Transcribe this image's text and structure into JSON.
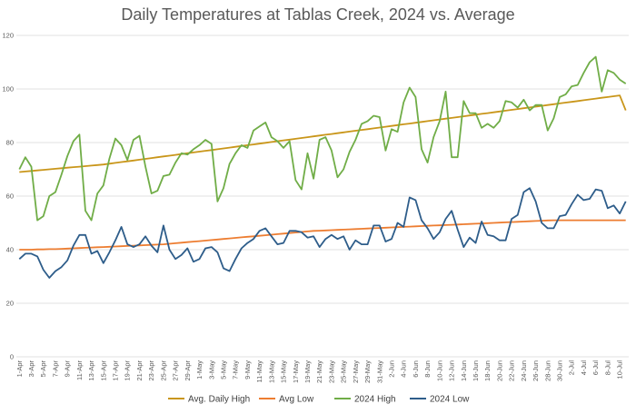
{
  "chart_data": {
    "type": "line",
    "title": "Daily Temperatures at Tablas Creek, 2024 vs. Average",
    "xlabel": "",
    "ylabel": "",
    "ylim": [
      0,
      120
    ],
    "yticks": [
      0,
      20,
      40,
      60,
      80,
      100,
      120
    ],
    "grid": true,
    "legend_position": "bottom",
    "x": [
      "1-Apr",
      "2-Apr",
      "3-Apr",
      "4-Apr",
      "5-Apr",
      "6-Apr",
      "7-Apr",
      "8-Apr",
      "9-Apr",
      "10-Apr",
      "11-Apr",
      "12-Apr",
      "13-Apr",
      "14-Apr",
      "15-Apr",
      "16-Apr",
      "17-Apr",
      "18-Apr",
      "19-Apr",
      "20-Apr",
      "21-Apr",
      "22-Apr",
      "23-Apr",
      "24-Apr",
      "25-Apr",
      "26-Apr",
      "27-Apr",
      "28-Apr",
      "29-Apr",
      "30-Apr",
      "1-May",
      "2-May",
      "3-May",
      "4-May",
      "5-May",
      "6-May",
      "7-May",
      "8-May",
      "9-May",
      "10-May",
      "11-May",
      "12-May",
      "13-May",
      "14-May",
      "15-May",
      "16-May",
      "17-May",
      "18-May",
      "19-May",
      "20-May",
      "21-May",
      "22-May",
      "23-May",
      "24-May",
      "25-May",
      "26-May",
      "27-May",
      "28-May",
      "29-May",
      "30-May",
      "31-May",
      "1-Jun",
      "2-Jun",
      "3-Jun",
      "4-Jun",
      "5-Jun",
      "6-Jun",
      "7-Jun",
      "8-Jun",
      "9-Jun",
      "10-Jun",
      "11-Jun",
      "12-Jun",
      "13-Jun",
      "14-Jun",
      "15-Jun",
      "16-Jun",
      "17-Jun",
      "18-Jun",
      "19-Jun",
      "20-Jun",
      "21-Jun",
      "22-Jun",
      "23-Jun",
      "24-Jun",
      "25-Jun",
      "26-Jun",
      "27-Jun",
      "28-Jun",
      "29-Jun",
      "30-Jun",
      "1-Jul",
      "2-Jul",
      "3-Jul",
      "4-Jul",
      "5-Jul",
      "6-Jul",
      "7-Jul",
      "8-Jul",
      "9-Jul",
      "10-Jul",
      "11-Jul"
    ],
    "series": [
      {
        "name": "Avg. Daily High",
        "color": "#C9961A",
        "values": [
          69.0,
          69.2,
          69.4,
          69.6,
          69.8,
          70.0,
          70.2,
          70.4,
          70.6,
          70.8,
          71.0,
          71.2,
          71.4,
          71.6,
          71.8,
          72.1,
          72.4,
          72.7,
          73.0,
          73.3,
          73.6,
          73.9,
          74.2,
          74.5,
          74.8,
          75.1,
          75.4,
          75.7,
          76.0,
          76.3,
          76.6,
          76.9,
          77.2,
          77.5,
          77.8,
          78.1,
          78.4,
          78.7,
          79.0,
          79.3,
          79.6,
          79.9,
          80.2,
          80.5,
          80.8,
          81.1,
          81.4,
          81.7,
          82.0,
          82.3,
          82.6,
          82.9,
          83.2,
          83.5,
          83.8,
          84.1,
          84.4,
          84.7,
          85.0,
          85.3,
          85.6,
          85.9,
          86.2,
          86.5,
          86.8,
          87.1,
          87.4,
          87.7,
          88.0,
          88.3,
          88.6,
          88.9,
          89.2,
          89.5,
          89.8,
          90.1,
          90.4,
          90.7,
          91.0,
          91.3,
          91.6,
          91.9,
          92.2,
          92.5,
          92.8,
          93.1,
          93.4,
          93.7,
          94.0,
          94.3,
          94.6,
          94.9,
          95.2,
          95.5,
          95.8,
          96.1,
          96.4,
          96.7,
          97.0,
          97.3,
          97.6,
          92.0
        ]
      },
      {
        "name": "Avg Low",
        "color": "#ED7D31",
        "values": [
          40.0,
          40.0,
          40.0,
          40.1,
          40.1,
          40.2,
          40.2,
          40.3,
          40.4,
          40.5,
          40.6,
          40.7,
          40.8,
          40.9,
          41.0,
          41.1,
          41.2,
          41.3,
          41.4,
          41.5,
          41.6,
          41.7,
          41.8,
          41.9,
          42.0,
          42.2,
          42.4,
          42.6,
          42.8,
          43.0,
          43.2,
          43.4,
          43.6,
          43.8,
          44.0,
          44.2,
          44.4,
          44.6,
          44.8,
          45.0,
          45.2,
          45.4,
          45.6,
          45.8,
          46.0,
          46.2,
          46.4,
          46.6,
          46.8,
          47.0,
          47.1,
          47.2,
          47.3,
          47.4,
          47.5,
          47.6,
          47.7,
          47.8,
          47.9,
          48.0,
          48.1,
          48.2,
          48.3,
          48.4,
          48.5,
          48.6,
          48.7,
          48.8,
          48.9,
          49.0,
          49.1,
          49.2,
          49.3,
          49.4,
          49.5,
          49.6,
          49.7,
          49.8,
          49.9,
          50.0,
          50.1,
          50.2,
          50.3,
          50.4,
          50.5,
          50.6,
          50.7,
          50.8,
          50.9,
          51.0,
          51.0,
          51.0,
          51.0,
          51.0,
          51.0,
          51.0,
          51.0,
          51.0,
          51.0,
          51.0,
          51.0,
          51.0
        ]
      },
      {
        "name": "2024 High",
        "color": "#70AD47",
        "values": [
          70,
          74.5,
          71,
          51,
          52.5,
          60,
          61.5,
          68,
          75,
          80.5,
          83,
          54.5,
          51,
          61,
          64,
          74,
          81.5,
          79,
          73.5,
          81,
          82.5,
          71,
          61,
          62,
          67.5,
          68,
          72.5,
          76,
          75.5,
          77.5,
          79,
          81,
          79.5,
          58,
          63,
          72,
          76,
          79,
          78,
          84.5,
          86,
          87.5,
          82,
          80.5,
          78,
          80.5,
          66,
          62.5,
          76,
          66.5,
          81,
          82,
          77,
          67,
          70,
          76.5,
          81,
          87,
          88,
          90,
          89.5,
          77,
          85,
          84,
          95,
          100.5,
          97,
          77.5,
          72.5,
          82,
          88,
          99,
          74.5,
          74.5,
          95.5,
          91,
          91,
          85.5,
          87,
          85.5,
          88,
          95.5,
          95,
          93,
          96,
          92,
          94,
          94,
          84.5,
          89,
          97,
          98,
          101,
          101.5,
          106,
          110,
          112,
          99,
          107,
          106,
          103.5,
          102
        ]
      },
      {
        "name": "2024 Low",
        "color": "#2E5D8A",
        "values": [
          36.5,
          38.5,
          38.5,
          37.5,
          32.5,
          29.5,
          32,
          33.5,
          36,
          41.5,
          45.5,
          45.5,
          38.5,
          39.5,
          35,
          39,
          43.5,
          48.5,
          42,
          41,
          42,
          45,
          41.5,
          39,
          49,
          40,
          36.5,
          38,
          40.5,
          35.5,
          36.5,
          40.5,
          41,
          39,
          33,
          32,
          36.5,
          40.5,
          42.5,
          44,
          47,
          48,
          45,
          42,
          42.5,
          47,
          47,
          46.5,
          44.5,
          45,
          41,
          44,
          45.5,
          44,
          45,
          40,
          43.5,
          42,
          42,
          49,
          49,
          43,
          44,
          50,
          48.5,
          59.5,
          58.5,
          51,
          48,
          44,
          46.5,
          51.5,
          54.5,
          47.5,
          41,
          44.5,
          42.5,
          50.5,
          45.5,
          45,
          43.5,
          43.5,
          51.5,
          53,
          61.5,
          63,
          58,
          50,
          48,
          48,
          52.5,
          53,
          57,
          60.5,
          58.5,
          59,
          62.5,
          62,
          55.5,
          56.5,
          53.5,
          58
        ]
      }
    ]
  }
}
